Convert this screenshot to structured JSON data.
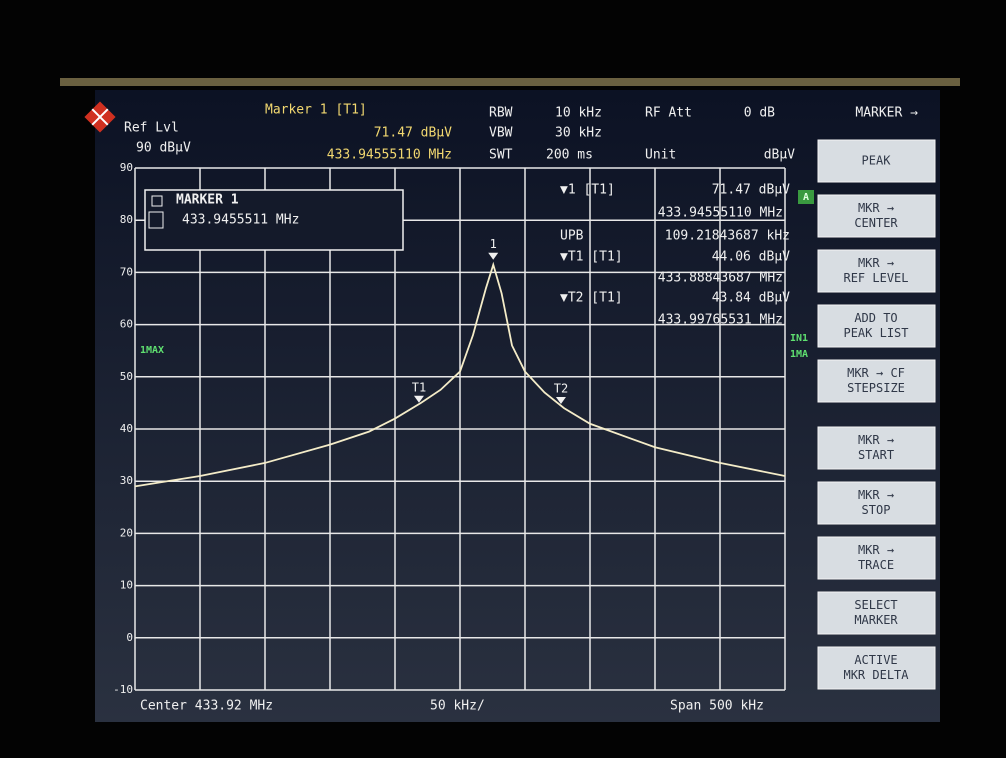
{
  "header": {
    "ref_lvl_label": "Ref Lvl",
    "ref_lvl_value": "90 dBµV",
    "marker_title": "Marker 1 [T1]",
    "marker_level": "71.47 dBµV",
    "marker_freq": "433.94555110 MHz",
    "rbw_label": "RBW",
    "rbw_value": "10 kHz",
    "vbw_label": "VBW",
    "vbw_value": "30 kHz",
    "swt_label": "SWT",
    "swt_value": "200 ms",
    "rf_att_label": "RF Att",
    "rf_att_value": "0 dB",
    "unit_label": "Unit",
    "unit_value": "dBµV",
    "menu_title": "MARKER →"
  },
  "marker_box": {
    "title": "MARKER 1",
    "value": "433.9455511 MHz"
  },
  "readout": [
    {
      "name": "▼1 [T1]",
      "level": "71.47 dBµV",
      "freq": "433.94555110 MHz"
    },
    {
      "name": "UPB",
      "freq": "109.21843687 kHz"
    },
    {
      "name": "▼T1 [T1]",
      "level": "44.06 dBµV",
      "freq": "433.88843687 MHz"
    },
    {
      "name": "▼T2 [T1]",
      "level": "43.84 dBµV",
      "freq": "433.99765531 MHz"
    }
  ],
  "side_labels": {
    "trace_mode": "1MAX",
    "screen": "A",
    "input": "IN1",
    "trace_right": "1MA"
  },
  "footer": {
    "center": "Center 433.92 MHz",
    "div": "50 kHz/",
    "span": "Span 500 kHz"
  },
  "plot": {
    "xlim": [
      433.67,
      434.17
    ],
    "ylim": [
      -10,
      90
    ],
    "yticks": [
      90,
      80,
      70,
      60,
      50,
      40,
      30,
      20,
      10,
      0,
      -10
    ],
    "trace": {
      "x": [
        433.67,
        433.72,
        433.77,
        433.82,
        433.85,
        433.87,
        433.89,
        433.905,
        433.92,
        433.93,
        433.94,
        433.9456,
        433.952,
        433.96,
        433.97,
        433.985,
        434.0,
        434.02,
        434.07,
        434.12,
        434.17
      ],
      "y": [
        29,
        31,
        33.5,
        37,
        39.5,
        42,
        45,
        47.5,
        51,
        58,
        67,
        71.47,
        66,
        56,
        51,
        47,
        44,
        41,
        36.5,
        33.5,
        31
      ]
    },
    "markers": [
      {
        "label": "1",
        "x": 433.9455511,
        "y": 71.47
      },
      {
        "label": "T1",
        "x": 433.88843687,
        "y": 44.06
      },
      {
        "label": "T2",
        "x": 433.99765531,
        "y": 43.84
      }
    ]
  },
  "softkeys": [
    [
      "PEAK"
    ],
    [
      "MKR →",
      "CENTER"
    ],
    [
      "MKR →",
      "REF LEVEL"
    ],
    [
      "ADD TO",
      "PEAK LIST"
    ],
    [
      "MKR → CF",
      "STEPSIZE"
    ],
    [
      "MKR →",
      "START"
    ],
    [
      "MKR →",
      "STOP"
    ],
    [
      "MKR →",
      "TRACE"
    ],
    [
      "SELECT",
      "MARKER"
    ],
    [
      "ACTIVE",
      "MKR DELTA"
    ]
  ]
}
